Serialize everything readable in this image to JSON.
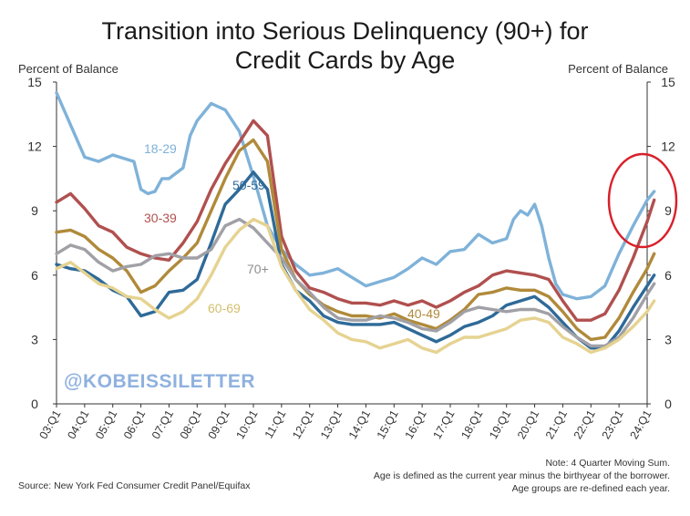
{
  "chart_data": {
    "type": "line",
    "title_line1": "Transition into Serious Delinquency (90+) for",
    "title_line2": "Credit Cards by Age",
    "ylabel_left": "Percent of Balance",
    "ylabel_right": "Percent of Balance",
    "ylim": [
      0,
      15
    ],
    "yticks": [
      0,
      3,
      6,
      9,
      12,
      15
    ],
    "x_range": [
      2003.0,
      2024.0
    ],
    "xticks": [
      "03:Q1",
      "04:Q1",
      "05:Q1",
      "06:Q1",
      "07:Q1",
      "08:Q1",
      "09:Q1",
      "10:Q1",
      "11:Q1",
      "12:Q1",
      "13:Q1",
      "14:Q1",
      "15:Q1",
      "16:Q1",
      "17:Q1",
      "18:Q1",
      "19:Q1",
      "20:Q1",
      "21:Q1",
      "22:Q1",
      "23:Q1",
      "24:Q1"
    ],
    "grid": false,
    "watermark": "@KOBEISSILETTER",
    "notes": [
      "Note: 4 Quarter Moving Sum.",
      "Age is defined as the current year minus the birthyear of the borrower.",
      "Age groups are re-defined each year."
    ],
    "source": "Source: New York Fed Consumer Credit Panel/Equifax",
    "highlight": "red circle around latest values (24:Q1)",
    "series": [
      {
        "name": "18-29",
        "color": "#7fb2d9",
        "x": [
          2003.0,
          2004.0,
          2004.5,
          2005.0,
          2005.5,
          2005.75,
          2006.0,
          2006.25,
          2006.5,
          2006.75,
          2007.0,
          2007.5,
          2007.75,
          2008.0,
          2008.5,
          2009.0,
          2009.5,
          2010.0,
          2010.5,
          2011.0,
          2011.5,
          2012.0,
          2012.5,
          2013.0,
          2013.5,
          2014.0,
          2014.5,
          2015.0,
          2015.5,
          2016.0,
          2016.5,
          2017.0,
          2017.5,
          2018.0,
          2018.5,
          2019.0,
          2019.25,
          2019.5,
          2019.75,
          2020.0,
          2020.25,
          2020.5,
          2020.75,
          2021.0,
          2021.5,
          2022.0,
          2022.5,
          2023.0,
          2023.5,
          2024.0,
          2024.25
        ],
        "y": [
          14.5,
          11.5,
          11.3,
          11.6,
          11.4,
          11.3,
          10.0,
          9.8,
          9.9,
          10.5,
          10.5,
          11.0,
          12.5,
          13.2,
          14.0,
          13.7,
          12.7,
          10.6,
          8.3,
          7.2,
          6.5,
          6.0,
          6.1,
          6.3,
          5.9,
          5.5,
          5.7,
          5.9,
          6.3,
          6.8,
          6.5,
          7.1,
          7.2,
          7.9,
          7.5,
          7.7,
          8.6,
          9.0,
          8.8,
          9.3,
          8.3,
          6.8,
          5.6,
          5.1,
          4.9,
          5.0,
          5.5,
          7.0,
          8.3,
          9.5,
          9.9
        ]
      },
      {
        "name": "30-39",
        "color": "#b0504f",
        "x": [
          2003.0,
          2003.5,
          2004.0,
          2004.5,
          2005.0,
          2005.5,
          2006.0,
          2006.5,
          2007.0,
          2007.5,
          2008.0,
          2008.5,
          2009.0,
          2009.5,
          2010.0,
          2010.5,
          2011.0,
          2011.5,
          2012.0,
          2012.5,
          2013.0,
          2013.5,
          2014.0,
          2014.5,
          2015.0,
          2015.5,
          2016.0,
          2016.5,
          2017.0,
          2017.5,
          2018.0,
          2018.5,
          2019.0,
          2019.5,
          2020.0,
          2020.5,
          2021.0,
          2021.5,
          2022.0,
          2022.5,
          2023.0,
          2023.5,
          2024.0,
          2024.25
        ],
        "y": [
          9.4,
          9.8,
          9.1,
          8.3,
          8.0,
          7.3,
          7.0,
          6.8,
          6.7,
          7.5,
          8.5,
          10.0,
          11.2,
          12.2,
          13.2,
          12.5,
          7.8,
          6.2,
          5.4,
          5.2,
          4.9,
          4.7,
          4.7,
          4.6,
          4.8,
          4.6,
          4.8,
          4.5,
          4.8,
          5.2,
          5.5,
          6.0,
          6.2,
          6.1,
          6.0,
          5.8,
          4.8,
          3.9,
          3.9,
          4.2,
          5.3,
          6.8,
          8.5,
          9.5
        ]
      },
      {
        "name": "50-59",
        "color": "#2e6a98",
        "x": [
          2003.0,
          2003.5,
          2004.0,
          2004.5,
          2005.0,
          2005.5,
          2006.0,
          2006.5,
          2007.0,
          2007.5,
          2008.0,
          2008.5,
          2009.0,
          2009.5,
          2010.0,
          2010.5,
          2011.0,
          2011.5,
          2012.0,
          2012.5,
          2013.0,
          2013.5,
          2014.0,
          2014.5,
          2015.0,
          2015.5,
          2016.0,
          2016.5,
          2017.0,
          2017.5,
          2018.0,
          2018.5,
          2019.0,
          2019.5,
          2020.0,
          2020.5,
          2021.0,
          2021.5,
          2022.0,
          2022.5,
          2023.0,
          2023.5,
          2024.0,
          2024.25
        ],
        "y": [
          6.5,
          6.3,
          6.2,
          5.8,
          5.3,
          5.0,
          4.1,
          4.3,
          5.2,
          5.3,
          5.8,
          7.5,
          9.3,
          10.0,
          10.8,
          10.0,
          6.5,
          5.3,
          4.8,
          4.1,
          3.8,
          3.7,
          3.7,
          3.7,
          3.8,
          3.5,
          3.2,
          2.9,
          3.2,
          3.6,
          3.8,
          4.1,
          4.6,
          4.8,
          5.0,
          4.5,
          3.8,
          3.1,
          2.6,
          2.6,
          3.4,
          4.5,
          5.5,
          6.0
        ]
      },
      {
        "name": "40-49",
        "color": "#b08a3a",
        "x": [
          2003.0,
          2003.5,
          2004.0,
          2004.5,
          2005.0,
          2005.5,
          2006.0,
          2006.5,
          2007.0,
          2007.5,
          2008.0,
          2008.5,
          2009.0,
          2009.5,
          2010.0,
          2010.5,
          2011.0,
          2011.5,
          2012.0,
          2012.5,
          2013.0,
          2013.5,
          2014.0,
          2014.5,
          2015.0,
          2015.5,
          2016.0,
          2016.5,
          2017.0,
          2017.5,
          2018.0,
          2018.5,
          2019.0,
          2019.5,
          2020.0,
          2020.5,
          2021.0,
          2021.5,
          2022.0,
          2022.5,
          2023.0,
          2023.5,
          2024.0,
          2024.25
        ],
        "y": [
          8.0,
          8.1,
          7.8,
          7.2,
          6.8,
          6.2,
          5.2,
          5.5,
          6.2,
          6.8,
          7.5,
          9.0,
          10.5,
          11.8,
          12.3,
          11.3,
          7.2,
          5.8,
          5.1,
          4.6,
          4.3,
          4.1,
          4.1,
          4.0,
          4.2,
          3.9,
          3.7,
          3.5,
          3.9,
          4.4,
          5.1,
          5.2,
          5.4,
          5.3,
          5.3,
          5.0,
          4.3,
          3.5,
          3.0,
          3.1,
          4.0,
          5.2,
          6.3,
          7.0
        ]
      },
      {
        "name": "70+",
        "color": "#a0a0a6",
        "x": [
          2003.0,
          2003.5,
          2004.0,
          2004.5,
          2005.0,
          2005.5,
          2006.0,
          2006.5,
          2007.0,
          2007.5,
          2008.0,
          2008.5,
          2009.0,
          2009.5,
          2010.0,
          2010.5,
          2011.0,
          2011.5,
          2012.0,
          2012.5,
          2013.0,
          2013.5,
          2014.0,
          2014.5,
          2015.0,
          2015.5,
          2016.0,
          2016.5,
          2017.0,
          2017.5,
          2018.0,
          2018.5,
          2019.0,
          2019.5,
          2020.0,
          2020.5,
          2021.0,
          2021.5,
          2022.0,
          2022.5,
          2023.0,
          2023.5,
          2024.0,
          2024.25
        ],
        "y": [
          7.0,
          7.4,
          7.2,
          6.6,
          6.2,
          6.4,
          6.5,
          6.9,
          7.0,
          6.8,
          6.8,
          7.2,
          8.3,
          8.6,
          8.2,
          7.5,
          6.8,
          5.8,
          5.2,
          4.5,
          4.0,
          3.9,
          3.9,
          4.1,
          4.0,
          3.8,
          3.5,
          3.4,
          3.8,
          4.3,
          4.5,
          4.4,
          4.3,
          4.4,
          4.4,
          4.2,
          3.6,
          3.1,
          2.7,
          2.7,
          3.1,
          4.0,
          5.1,
          5.6
        ]
      },
      {
        "name": "60-69",
        "color": "#e6d391",
        "x": [
          2003.0,
          2003.5,
          2004.0,
          2004.5,
          2005.0,
          2005.5,
          2006.0,
          2006.5,
          2007.0,
          2007.5,
          2008.0,
          2008.5,
          2009.0,
          2009.5,
          2010.0,
          2010.5,
          2011.0,
          2011.5,
          2012.0,
          2012.5,
          2013.0,
          2013.5,
          2014.0,
          2014.5,
          2015.0,
          2015.5,
          2016.0,
          2016.5,
          2017.0,
          2017.5,
          2018.0,
          2018.5,
          2019.0,
          2019.5,
          2020.0,
          2020.5,
          2021.0,
          2021.5,
          2022.0,
          2022.5,
          2023.0,
          2023.5,
          2024.0,
          2024.25
        ],
        "y": [
          6.3,
          6.6,
          6.1,
          5.6,
          5.4,
          5.0,
          4.9,
          4.4,
          4.0,
          4.3,
          4.9,
          6.0,
          7.3,
          8.1,
          8.6,
          8.3,
          6.4,
          5.3,
          4.4,
          3.9,
          3.3,
          3.0,
          2.9,
          2.6,
          2.8,
          3.0,
          2.6,
          2.4,
          2.8,
          3.1,
          3.1,
          3.3,
          3.5,
          3.9,
          4.0,
          3.8,
          3.1,
          2.8,
          2.4,
          2.6,
          3.0,
          3.6,
          4.3,
          4.8
        ]
      }
    ],
    "series_labels": [
      {
        "text": "18-29",
        "color": "#7fb2d9"
      },
      {
        "text": "30-39",
        "color": "#b0504f"
      },
      {
        "text": "50-59",
        "color": "#2e6a98"
      },
      {
        "text": "70+",
        "color": "#8e8e92"
      },
      {
        "text": "60-69",
        "color": "#d4bf6c"
      },
      {
        "text": "40-49",
        "color": "#b08a3a"
      }
    ]
  }
}
